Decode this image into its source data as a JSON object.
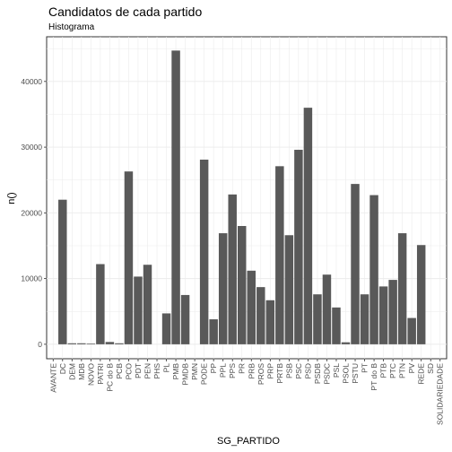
{
  "chart_data": {
    "type": "bar",
    "title": "Candidatos de cada partido",
    "subtitle": "Histograma",
    "xlabel": "SG_PARTIDO",
    "ylabel": "n()",
    "ylim": [
      -2200,
      46800
    ],
    "yticks": [
      0,
      10000,
      20000,
      30000,
      40000
    ],
    "grid": true,
    "bar_color": "#595959",
    "categories": [
      "AVANTE",
      "DC",
      "DEM",
      "MDB",
      "NOVO",
      "PATRI",
      "PC do B",
      "PCB",
      "PCO",
      "PDT",
      "PEN",
      "PHS",
      "PL",
      "PMB",
      "PMDB",
      "PMN",
      "PODE",
      "PP",
      "PPL",
      "PPS",
      "PR",
      "PRB",
      "PROS",
      "PRP",
      "PRTB",
      "PSB",
      "PSC",
      "PSD",
      "PSDB",
      "PSDC",
      "PSL",
      "PSOL",
      "PSTU",
      "PT",
      "PT do B",
      "PTB",
      "PTC",
      "PTN",
      "PV",
      "REDE",
      "SD",
      "SOLIDARIEDADE"
    ],
    "values": [
      0,
      22000,
      150,
      150,
      100,
      12200,
      350,
      150,
      26300,
      10300,
      12100,
      0,
      4700,
      44700,
      7500,
      0,
      28100,
      3800,
      16900,
      22800,
      18000,
      11200,
      8700,
      6700,
      27100,
      16600,
      29600,
      36000,
      7600,
      10600,
      5600,
      300,
      24400,
      7600,
      22700,
      8800,
      9800,
      16900,
      4000,
      15100,
      0,
      0
    ]
  }
}
